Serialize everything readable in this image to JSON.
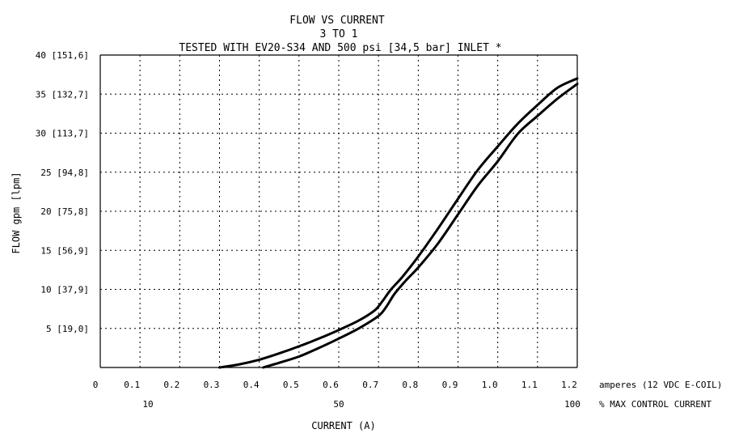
{
  "chart_data": {
    "type": "line",
    "title": "FLOW VS CURRENT",
    "subtitle_lines": [
      "3 TO 1",
      "TESTED WITH EV20-S34 AND 500 psi [34,5 bar] INLET *"
    ],
    "xlabel": "CURRENT (A)",
    "ylabel": "FLOW gpm [lpm]",
    "xlim": [
      0,
      1.2
    ],
    "ylim": [
      0,
      40
    ],
    "grid": true,
    "x_ticks": [
      "0",
      "0.1",
      "0.2",
      "0.3",
      "0.4",
      "0.5",
      "0.6",
      "0.7",
      "0.8",
      "0.9",
      "1.0",
      "1.1",
      "1.2"
    ],
    "x_tick_values": [
      0,
      0.1,
      0.2,
      0.3,
      0.4,
      0.5,
      0.6,
      0.7,
      0.8,
      0.9,
      1.0,
      1.1,
      1.2
    ],
    "x_unit_label": "amperes (12 VDC E-COIL)",
    "x_secondary_ticks": [
      "10",
      "50",
      "100"
    ],
    "x_secondary_values": [
      0.12,
      0.6,
      1.2
    ],
    "x_secondary_label": "% MAX CONTROL CURRENT",
    "y_ticks": [
      "5 [19,0]",
      "10 [37,9]",
      "15 [56,9]",
      "20 [75,8]",
      "25 [94,8]",
      "30 [113,7]",
      "35 [132,7]",
      "40 [151,6]"
    ],
    "y_tick_values": [
      5,
      10,
      15,
      20,
      25,
      30,
      35,
      40
    ],
    "series": [
      {
        "x": [
          0.3,
          0.35,
          0.4,
          0.45,
          0.5,
          0.55,
          0.6,
          0.65,
          0.69,
          0.71,
          0.73,
          0.76,
          0.8,
          0.85,
          0.9,
          0.95,
          1.0,
          1.05,
          1.1,
          1.15,
          1.2
        ],
        "y": [
          0,
          0.4,
          1.0,
          1.8,
          2.7,
          3.7,
          4.8,
          6.0,
          7.3,
          8.5,
          9.9,
          11.6,
          14.2,
          17.8,
          21.6,
          25.3,
          28.3,
          31.2,
          33.6,
          35.8,
          37.0
        ]
      },
      {
        "x": [
          0.41,
          0.45,
          0.5,
          0.55,
          0.6,
          0.65,
          0.7,
          0.72,
          0.74,
          0.77,
          0.8,
          0.85,
          0.9,
          0.95,
          1.0,
          1.05,
          1.1,
          1.15,
          1.2
        ],
        "y": [
          0,
          0.6,
          1.4,
          2.5,
          3.7,
          5.0,
          6.6,
          7.8,
          9.4,
          11.2,
          12.8,
          15.9,
          19.6,
          23.3,
          26.4,
          29.9,
          32.2,
          34.4,
          36.3
        ]
      }
    ]
  }
}
